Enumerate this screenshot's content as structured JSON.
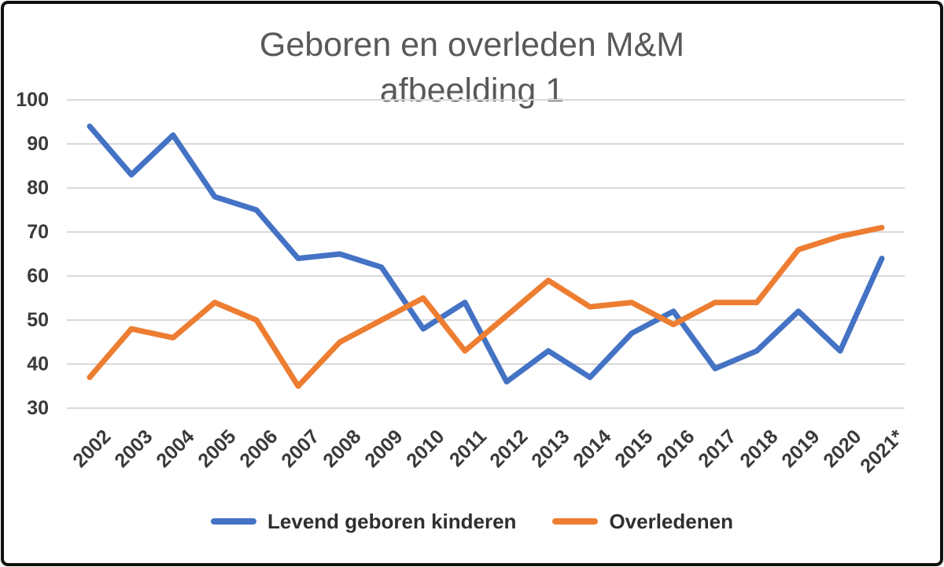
{
  "title": {
    "line1": "Geboren en overleden M&M",
    "line2": "afbeelding 1",
    "color": "#595959"
  },
  "chart_data": {
    "type": "line",
    "title": "Geboren en overleden M&M afbeelding 1",
    "categories": [
      "2002",
      "2003",
      "2004",
      "2005",
      "2006",
      "2007",
      "2008",
      "2009",
      "2010",
      "2011",
      "2012",
      "2013",
      "2014",
      "2015",
      "2016",
      "2017",
      "2018",
      "2019",
      "2020",
      "2021*"
    ],
    "series": [
      {
        "name": "Levend geboren kinderen",
        "color": "#4472C4",
        "values": [
          94,
          83,
          92,
          78,
          75,
          64,
          65,
          62,
          48,
          54,
          36,
          43,
          37,
          47,
          52,
          39,
          43,
          52,
          43,
          64
        ]
      },
      {
        "name": "Overledenen",
        "color": "#ED7D31",
        "values": [
          37,
          48,
          46,
          54,
          50,
          35,
          45,
          50,
          55,
          43,
          51,
          59,
          53,
          54,
          49,
          54,
          54,
          66,
          69,
          71
        ]
      }
    ],
    "xlabel": "",
    "ylabel": "",
    "ylim": [
      30,
      100
    ],
    "y_ticks": [
      "100",
      "90",
      "80",
      "70",
      "60",
      "50",
      "40",
      "30"
    ],
    "grid": "horizontal",
    "gridline_color": "#D9D9D9",
    "axis_label_color": "#3a3a3a",
    "legend_position": "bottom"
  }
}
